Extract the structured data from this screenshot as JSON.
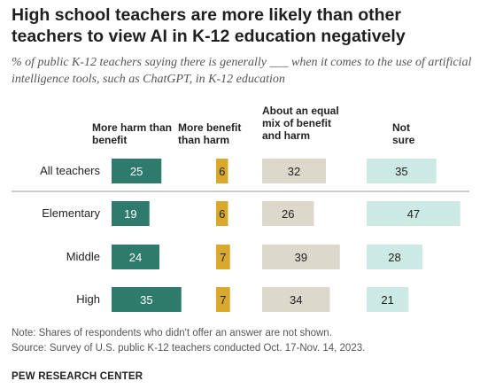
{
  "title": "High school teachers are more likely than other teachers to view AI in K-12 education negatively",
  "subtitle": "% of public K-12 teachers saying there is generally ___ when it comes to the use of artificial intelligence tools, such as ChatGPT, in K-12 education",
  "columns": {
    "harm": "More harm than benefit",
    "benefit": "More benefit than harm",
    "mix": "About an equal mix of benefit and harm",
    "notsure": "Not sure"
  },
  "notes": {
    "note": "Note: Shares of respondents who didn't offer an answer are not shown.",
    "source": "Source: Survey of U.S. public K-12 teachers conducted Oct. 17-Nov. 14, 2023.",
    "brand": "PEW RESEARCH CENTER"
  },
  "colors": {
    "harm": "#2e7b6b",
    "benefit": "#d9a92d",
    "mix": "#dcd8cc",
    "notsure": "#cde9e4"
  },
  "chart_data": {
    "type": "bar",
    "categories": [
      "All teachers",
      "Elementary",
      "Middle",
      "High"
    ],
    "series": [
      {
        "name": "More harm than benefit",
        "values": [
          25,
          19,
          24,
          35
        ]
      },
      {
        "name": "More benefit than harm",
        "values": [
          6,
          6,
          7,
          7
        ]
      },
      {
        "name": "About an equal mix of benefit and harm",
        "values": [
          32,
          26,
          39,
          34
        ]
      },
      {
        "name": "Not sure",
        "values": [
          35,
          47,
          28,
          21
        ]
      }
    ]
  }
}
